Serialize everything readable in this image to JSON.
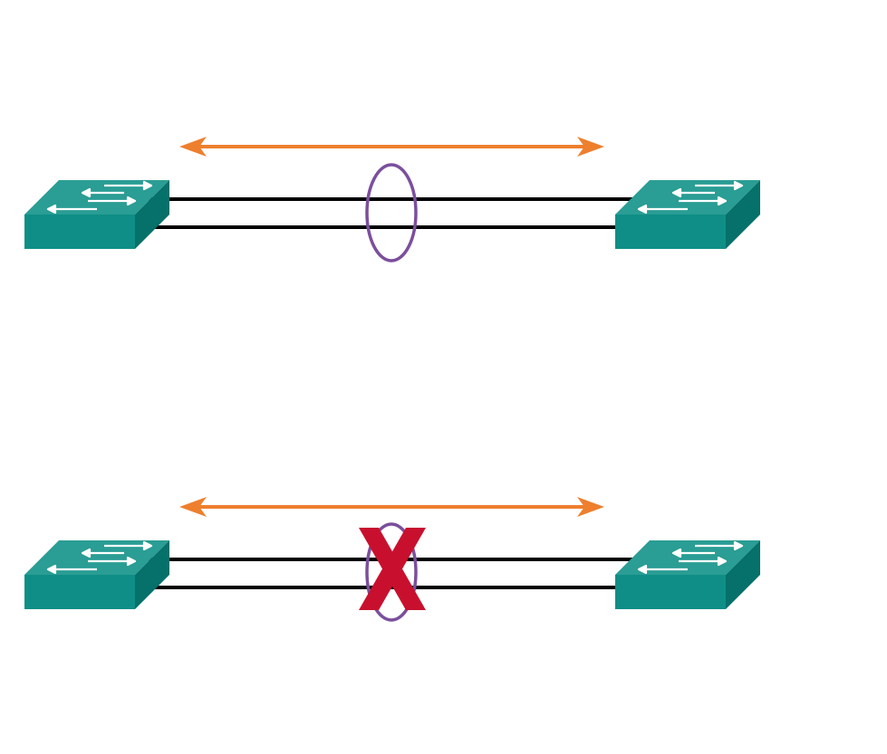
{
  "colors": {
    "switch_top": "#2a9d94",
    "switch_front": "#0e8e86",
    "switch_side": "#06706a",
    "switch_arrow": "#ffffff",
    "link": "#000000",
    "traffic_arrow": "#ee7f2d",
    "bundle_ring": "#7b4f9d",
    "failure_mark": "#c8102e"
  },
  "icons": {
    "switch": "workgroup-switch-icon",
    "bundle": "link-bundle-ellipse",
    "traffic": "bidirectional-arrow-icon",
    "failure": "x-mark-icon"
  },
  "diagrams": [
    {
      "id": "top",
      "links": 2,
      "bundled": true,
      "failed": false
    },
    {
      "id": "bottom",
      "links": 2,
      "bundled": true,
      "failed": true
    }
  ]
}
